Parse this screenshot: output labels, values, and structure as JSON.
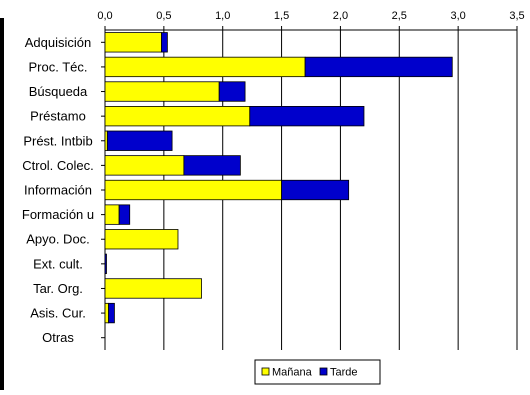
{
  "chart_data": {
    "type": "bar",
    "orientation": "horizontal",
    "stacked": true,
    "categories": [
      "Adquisición",
      "Proc. Téc.",
      "Búsqueda",
      "Préstamo",
      "Prést. Intbib",
      "Ctrol. Colec.",
      "Información",
      "Formación u",
      "Apyo. Doc.",
      "Ext. cult.",
      "Tar. Org.",
      "Asis. Cur.",
      "Otras"
    ],
    "series": [
      {
        "name": "Mañana",
        "color": "#ffff00",
        "values": [
          0.48,
          1.7,
          0.97,
          1.23,
          0.02,
          0.67,
          1.5,
          0.12,
          0.62,
          0.0,
          0.82,
          0.03,
          0.0
        ]
      },
      {
        "name": "Tarde",
        "color": "#0000cc",
        "values": [
          0.05,
          1.25,
          0.22,
          0.97,
          0.55,
          0.48,
          0.57,
          0.09,
          0.0,
          0.01,
          0.0,
          0.05,
          0.0
        ]
      }
    ],
    "xlim": [
      0,
      3.5
    ],
    "xticks": [
      "0,0",
      "0,5",
      "1,0",
      "1,5",
      "2,0",
      "2,5",
      "3,0",
      "3,5"
    ],
    "xaxis_position": "top",
    "grid": "vertical",
    "legend": "bottom",
    "title": "",
    "xlabel": "",
    "ylabel": ""
  }
}
